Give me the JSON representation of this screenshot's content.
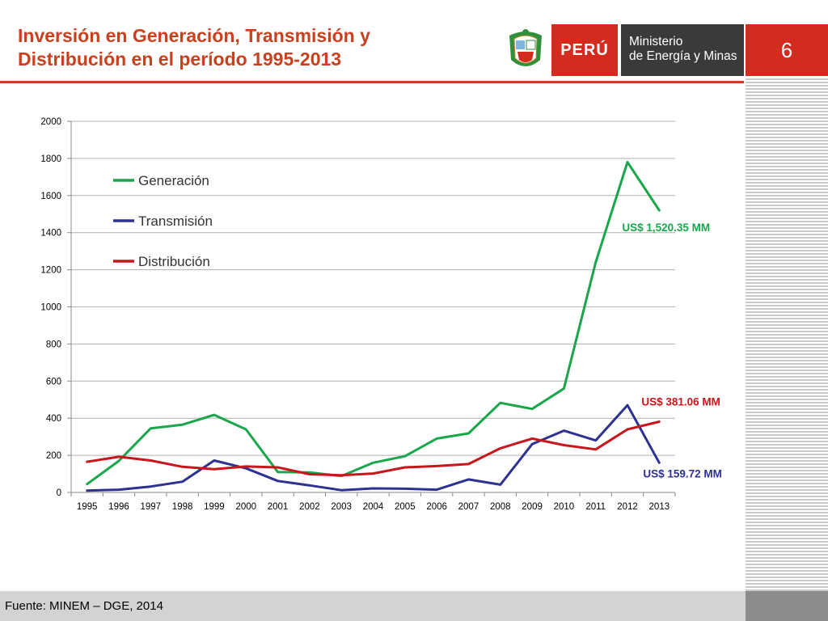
{
  "slide": {
    "title_line1": "Inversión en Generación, Transmisión y",
    "title_line2": "Distribución  en el período 1995-2013",
    "number": "6",
    "source": "Fuente: MINEM – DGE, 2014"
  },
  "logo": {
    "country": "PERÚ",
    "ministry_line1": "Ministerio",
    "ministry_line2": "de Energía y Minas",
    "colors": {
      "red": "#d52b1e",
      "dark": "#3a3a3a"
    }
  },
  "chart_data": {
    "type": "line",
    "title": "",
    "xlabel": "",
    "ylabel": "",
    "x": [
      "1995",
      "1996",
      "1997",
      "1998",
      "1999",
      "2000",
      "2001",
      "2002",
      "2003",
      "2004",
      "2005",
      "2006",
      "2007",
      "2008",
      "2009",
      "2010",
      "2011",
      "2012",
      "2013"
    ],
    "ylim": [
      0,
      2000
    ],
    "yticks": [
      0,
      200,
      400,
      600,
      800,
      1000,
      1200,
      1400,
      1600,
      1800,
      2000
    ],
    "grid": true,
    "legend_position": "top-left",
    "series": [
      {
        "name": "Generación",
        "color": "#1aa64a",
        "values": [
          45,
          170,
          345,
          365,
          418,
          340,
          110,
          108,
          88,
          160,
          195,
          290,
          318,
          483,
          450,
          560,
          1240,
          1780,
          1520.35
        ]
      },
      {
        "name": "Transmisión",
        "color": "#2e3192",
        "values": [
          10,
          15,
          32,
          58,
          172,
          130,
          62,
          38,
          12,
          22,
          20,
          15,
          70,
          42,
          260,
          333,
          280,
          470,
          159.72
        ]
      },
      {
        "name": "Distribución",
        "color": "#c8161d",
        "values": [
          165,
          192,
          172,
          138,
          125,
          140,
          135,
          98,
          93,
          102,
          135,
          142,
          153,
          238,
          290,
          255,
          232,
          340,
          381.06
        ]
      }
    ],
    "annotations": [
      {
        "text": "US$ 1,520.35 MM",
        "color": "#1aa64a",
        "series": "Generación"
      },
      {
        "text": "US$ 381.06  MM",
        "color": "#c8161d",
        "series": "Distribución"
      },
      {
        "text": "US$ 159.72 MM",
        "color": "#2e3192",
        "series": "Transmisión"
      }
    ]
  }
}
